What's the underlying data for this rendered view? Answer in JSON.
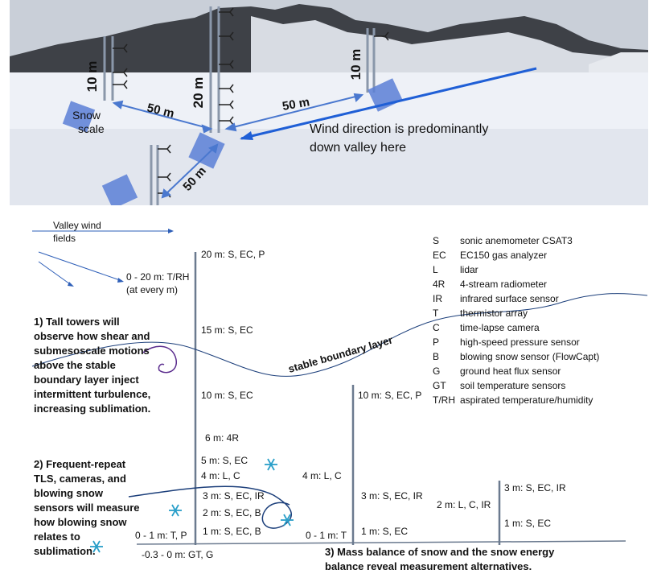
{
  "photo": {
    "labels": {
      "tower_a_height": "10 m",
      "tower_b_height": "20 m",
      "tower_c_height": "10 m",
      "dist_ab": "50 m",
      "dist_bc": "50 m",
      "dist_bd": "50 m",
      "snow_scale_line1": "Snow",
      "snow_scale_line2": "scale",
      "wind_line1": "Wind direction is predominantly",
      "wind_line2": "down valley here"
    },
    "colors": {
      "arrow": "#1f5fd6",
      "scale_fill": "#5a7fd6",
      "snow": "#eef1f7",
      "sky": "#c9cfd8"
    }
  },
  "legend": {
    "title_line1": "Valley wind",
    "title_line2": "fields",
    "items": [
      {
        "code": "S",
        "desc": "sonic anemometer CSAT3"
      },
      {
        "code": "EC",
        "desc": "EC150 gas analyzer"
      },
      {
        "code": "L",
        "desc": "lidar"
      },
      {
        "code": "4R",
        "desc": "4-stream radiometer"
      },
      {
        "code": "IR",
        "desc": "infrared surface sensor"
      },
      {
        "code": "T",
        "desc": "thermistor array"
      },
      {
        "code": "C",
        "desc": "time-lapse camera"
      },
      {
        "code": "P",
        "desc": "high-speed pressure sensor"
      },
      {
        "code": "B",
        "desc": "blowing snow sensor (FlowCapt)"
      },
      {
        "code": "G",
        "desc": "ground heat flux sensor"
      },
      {
        "code": "GT",
        "desc": "soil temperature sensors"
      },
      {
        "code": "T/RH",
        "desc": "aspirated temperature/humidity"
      }
    ]
  },
  "tall_tower": {
    "labels": [
      "20 m: S, EC, P",
      "15 m: S, EC",
      "10 m: S, EC",
      "6 m: 4R",
      "5 m: S, EC",
      "4 m: L, C",
      "3 m: S, EC, IR",
      "2 m: S, EC, B",
      "1 m: S, EC, B"
    ],
    "trh_line1": "0 - 20 m: T/RH",
    "trh_line2": "(at every m)",
    "left_bottom": "0 - 1 m: T, P"
  },
  "mid_tower": {
    "labels": [
      "10 m: S, EC, P",
      "4 m: L, C",
      "3 m: S, EC, IR",
      "1 m: S, EC",
      "0 - 1 m: T"
    ]
  },
  "short_tower": {
    "labels": [
      "3 m: S, EC, IR",
      "2 m: L, C, IR",
      "1 m: S, EC"
    ]
  },
  "ground": {
    "label": "-0.3 - 0  m: GT, G"
  },
  "stable_layer": {
    "label": "stable boundary layer"
  },
  "notes": {
    "note1": [
      "1) Tall towers will",
      "observe how shear and",
      "submesoscale motions",
      "above the stable",
      "boundary layer inject",
      "intermittent turbulence,",
      "increasing sublimation."
    ],
    "note2": [
      "2) Frequent-repeat",
      "TLS, cameras, and",
      "blowing snow",
      "sensors will measure",
      "how blowing snow",
      "relates to",
      "sublimation."
    ],
    "note3": [
      "3) Mass balance of snow and the snow energy",
      "balance reveal measurement alternatives."
    ]
  },
  "colors": {
    "wind_arrow": "#2e5fb8",
    "curve": "#1b3e7a",
    "sensor_star": "#2a9fc9",
    "tower": "#6b7a8f"
  }
}
